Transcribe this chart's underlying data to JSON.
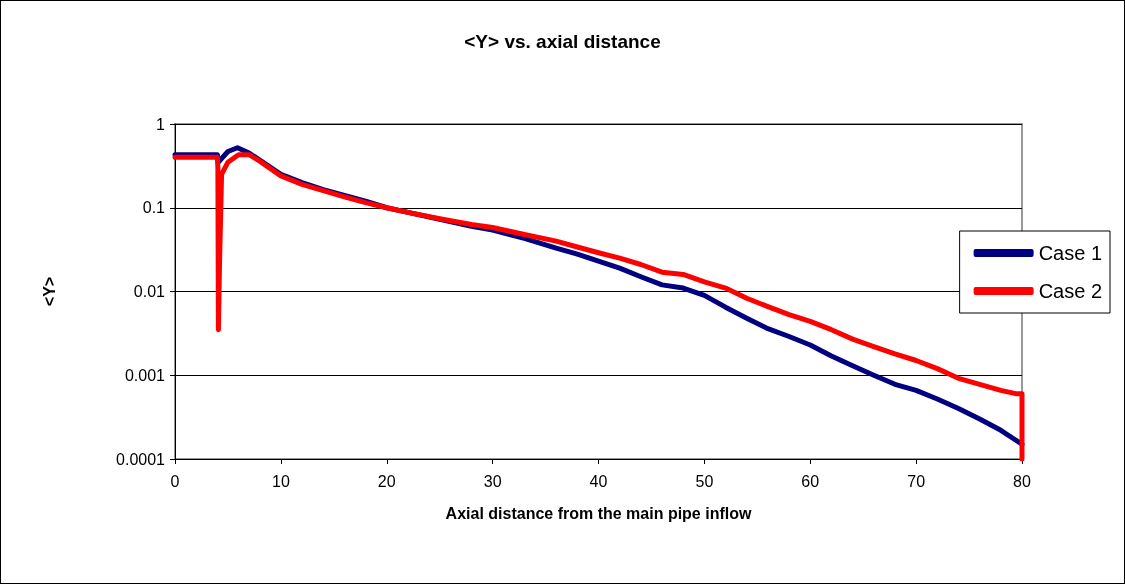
{
  "chart_data": {
    "type": "line",
    "title": "<Y> vs. axial distance",
    "xlabel": "Axial distance from the main pipe inflow",
    "ylabel": "<Y>",
    "log": "y",
    "grid": "y",
    "legend": "right",
    "marker": "none",
    "line_style": "solid",
    "xlim": [
      0,
      80
    ],
    "xticks": [
      0,
      10,
      20,
      30,
      40,
      50,
      60,
      70,
      80
    ],
    "ylim": [
      0.0001,
      1
    ],
    "yticks": [
      0.0001,
      0.001,
      0.01,
      0.1,
      1
    ],
    "series": [
      {
        "name": "Case 1",
        "color": "#000080",
        "x": [
          0,
          4,
          4.1,
          4.5,
          5,
          5.9,
          7,
          8,
          10,
          12,
          14,
          16,
          18,
          20,
          22,
          25,
          28,
          30,
          33,
          36,
          38,
          40,
          42,
          44,
          46,
          48,
          50,
          52,
          54,
          56,
          58,
          60,
          62,
          64,
          66,
          68,
          70,
          72,
          74,
          76,
          78,
          80
        ],
        "values": [
          0.43,
          0.43,
          0.35,
          0.4,
          0.47,
          0.52,
          0.45,
          0.37,
          0.25,
          0.2,
          0.165,
          0.14,
          0.12,
          0.1,
          0.088,
          0.073,
          0.06,
          0.054,
          0.043,
          0.033,
          0.028,
          0.023,
          0.019,
          0.015,
          0.012,
          0.011,
          0.009,
          0.0065,
          0.0048,
          0.0036,
          0.0029,
          0.0023,
          0.0017,
          0.0013,
          0.001,
          0.00078,
          0.00066,
          0.00052,
          0.0004,
          0.0003,
          0.00022,
          0.00015
        ]
      },
      {
        "name": "Case 2",
        "color": "#ff0000",
        "x": [
          0,
          4,
          4.05,
          4.1,
          4.2,
          4.4,
          5,
          6,
          7,
          8,
          10,
          12,
          14,
          16,
          18,
          20,
          22,
          25,
          28,
          30,
          33,
          36,
          38,
          40,
          42,
          44,
          46,
          48,
          50,
          52,
          54,
          56,
          58,
          60,
          62,
          64,
          66,
          68,
          70,
          72,
          74,
          76,
          78,
          79.5,
          80,
          80
        ],
        "values": [
          0.4,
          0.4,
          0.3,
          0.0035,
          0.02,
          0.25,
          0.35,
          0.43,
          0.43,
          0.36,
          0.24,
          0.19,
          0.16,
          0.135,
          0.115,
          0.1,
          0.088,
          0.074,
          0.063,
          0.058,
          0.048,
          0.04,
          0.034,
          0.029,
          0.025,
          0.021,
          0.017,
          0.016,
          0.013,
          0.011,
          0.0083,
          0.0066,
          0.0053,
          0.0044,
          0.0035,
          0.0027,
          0.0022,
          0.0018,
          0.0015,
          0.0012,
          0.00092,
          0.00078,
          0.00066,
          0.0006,
          0.0006,
          0.0001
        ]
      }
    ]
  }
}
